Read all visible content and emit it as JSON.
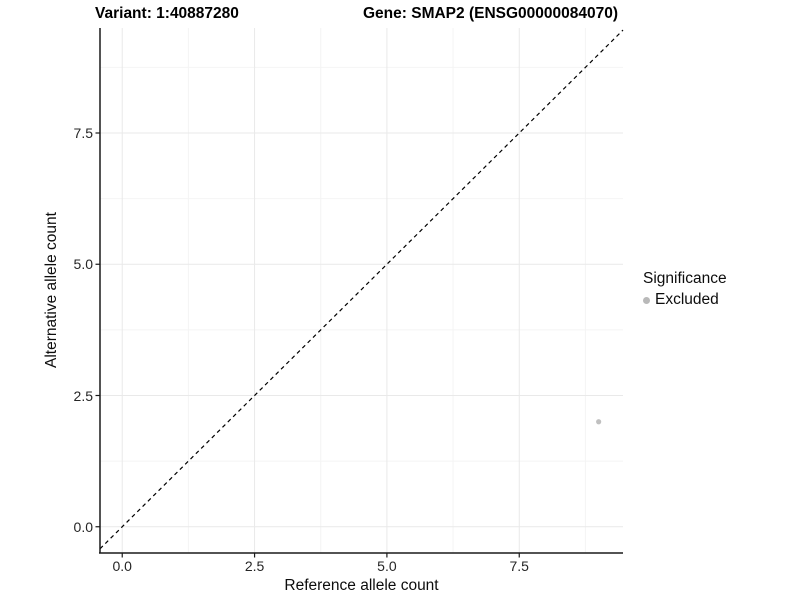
{
  "header": {
    "variant_title": "Variant: 1:40887280",
    "gene_title": "Gene: SMAP2 (ENSG00000084070)"
  },
  "axes": {
    "x_label": "Reference allele count",
    "y_label": "Alternative allele count"
  },
  "legend": {
    "title": "Significance",
    "entries": [
      {
        "label": "Excluded",
        "color": "#b9b9b9"
      }
    ]
  },
  "colors": {
    "background": "#ffffff",
    "axis_line": "#1a1a1a",
    "major_grid": "#e9e9e9",
    "minor_grid": "#f4f4f4",
    "reference_line": "#000000",
    "point": "#c0c0c0"
  },
  "chart_data": {
    "type": "scatter",
    "title": "Variant: 1:40887280   Gene: SMAP2 (ENSG00000084070)",
    "xlabel": "Reference allele count",
    "ylabel": "Alternative allele count",
    "xlim": [
      -0.42,
      9.46
    ],
    "ylim": [
      -0.5,
      9.5
    ],
    "x_ticks": {
      "values": [
        0,
        2.5,
        5,
        7.5
      ],
      "labels": [
        "0.0",
        "2.5",
        "5.0",
        "7.5"
      ]
    },
    "y_ticks": {
      "values": [
        0,
        2.5,
        5,
        7.5
      ],
      "labels": [
        "0.0",
        "2.5",
        "5.0",
        "7.5"
      ]
    },
    "x_minor_ticks": [
      1.25,
      3.75,
      6.25,
      8.75
    ],
    "y_minor_ticks": [
      1.25,
      3.75,
      6.25,
      8.75
    ],
    "grid": "on",
    "legend_position": "right",
    "legend_title": "Significance",
    "reference_line": {
      "type": "identity",
      "slope": 1,
      "intercept": 0,
      "style": "dashed",
      "color": "#000000"
    },
    "series": [
      {
        "name": "Excluded",
        "color": "#c0c0c0",
        "points": [
          {
            "x": 9,
            "y": 2
          }
        ]
      }
    ]
  }
}
